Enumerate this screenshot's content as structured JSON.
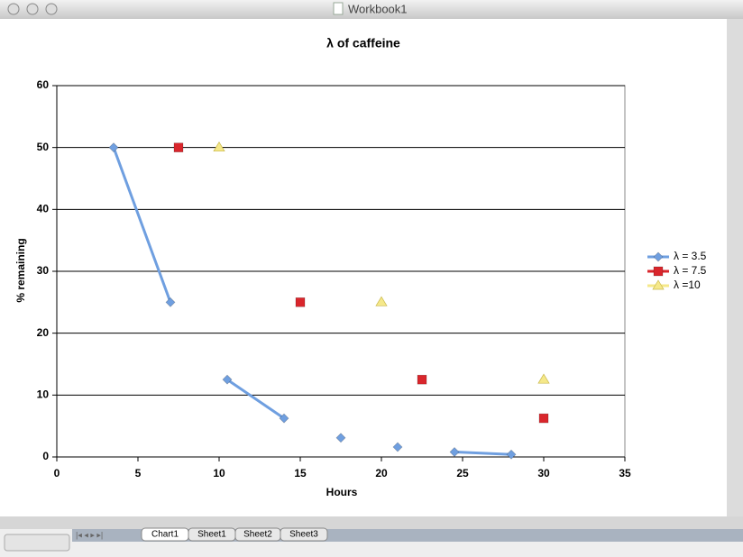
{
  "window": {
    "title": "Workbook1",
    "tabs": [
      "Chart1",
      "Sheet1",
      "Sheet2",
      "Sheet3"
    ],
    "active_tab": 0
  },
  "chart_data": {
    "type": "line",
    "title": "λ of caffeine",
    "x_label": "Hours",
    "y_label": "% remaining",
    "xlim": [
      0,
      35
    ],
    "xticks": [
      0,
      5,
      10,
      15,
      20,
      25,
      30,
      35
    ],
    "ylim": [
      0,
      60
    ],
    "yticks": [
      0,
      10,
      20,
      30,
      40,
      50,
      60
    ],
    "grid": true,
    "legend": "right",
    "series": [
      {
        "name": "λ = 3.5",
        "color": "#6f9fe0",
        "marker": "diamond",
        "line": true,
        "x": [
          3.5,
          7,
          8.75,
          10.5,
          14,
          15.75,
          17.5,
          19.25,
          21,
          22.75,
          24.5,
          28
        ],
        "values": [
          50,
          25,
          null,
          12.5,
          6.25,
          null,
          3.1,
          null,
          1.6,
          null,
          0.8,
          0.4
        ]
      },
      {
        "name": "λ = 7.5",
        "color": "#d9262c",
        "marker": "square",
        "line": false,
        "x": [
          7.5,
          15,
          22.5,
          30
        ],
        "values": [
          50,
          25,
          12.5,
          6.25
        ]
      },
      {
        "name": "λ =10",
        "color": "#f5e88a",
        "marker": "triangle",
        "line": false,
        "x": [
          10,
          20,
          30
        ],
        "values": [
          50,
          25,
          12.5
        ]
      }
    ]
  }
}
